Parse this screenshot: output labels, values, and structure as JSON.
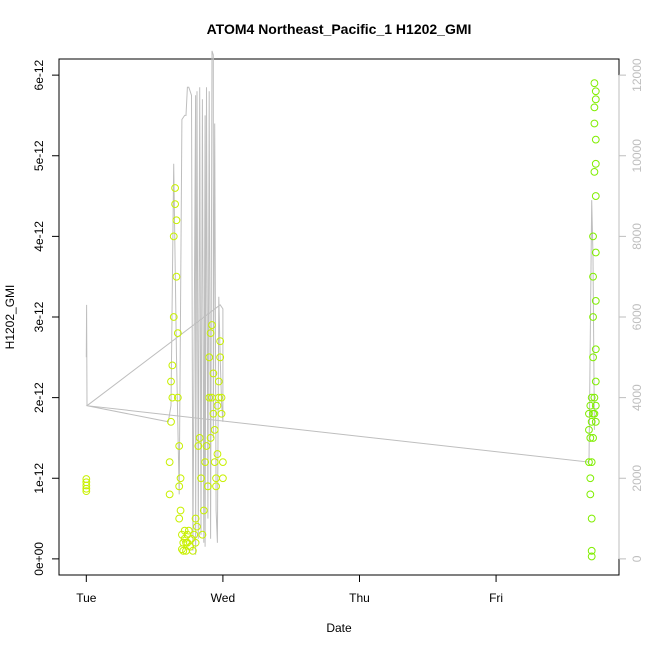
{
  "chart_data": {
    "type": "scatter",
    "title": "ATOM4 Northeast_Pacific_1 H1202_GMI",
    "xlabel": "Date",
    "ylabel": "H1202_GMI",
    "x_ticks": [
      "Tue",
      "Wed",
      "Thu",
      "Fri"
    ],
    "x_tick_values": [
      0,
      1,
      2,
      3
    ],
    "xlim": [
      -0.2,
      3.9
    ],
    "ylim_left": [
      -2e-13,
      6.2e-12
    ],
    "ylim_right": [
      -400,
      12400
    ],
    "y_ticks_left": [
      "0e+00",
      "1e-12",
      "2e-12",
      "3e-12",
      "4e-12",
      "5e-12",
      "6e-12"
    ],
    "y_tick_values_left": [
      0,
      1e-12,
      2e-12,
      3e-12,
      4e-12,
      5e-12,
      6e-12
    ],
    "y_ticks_right": [
      "0",
      "2000",
      "4000",
      "6000",
      "8000",
      "10000",
      "12000"
    ],
    "y_tick_values_right": [
      0,
      2000,
      4000,
      6000,
      8000,
      10000,
      12000
    ],
    "grid": false,
    "colors": {
      "right_series_line": "#bebebe",
      "right_axis_text": "#bebebe",
      "points_early": "#c8f000",
      "points_late": "#80ee00"
    },
    "series": [
      {
        "axis": "right",
        "style": "line",
        "x": [
          0,
          0.002,
          0.005,
          0.6,
          0.62,
          0.64,
          0.66,
          0.68,
          0.7,
          0.72,
          0.73,
          0.74,
          0.75,
          0.77,
          0.78,
          0.8,
          0.8,
          0.81,
          0.82,
          0.83,
          0.84,
          0.85,
          0.86,
          0.87,
          0.87,
          0.88,
          0.89,
          0.9,
          0.91,
          0.92,
          0.93,
          0.93,
          0.94,
          0.95,
          0.96,
          0.97,
          0.98,
          0.99,
          1.0,
          1.0,
          0.98,
          0.005,
          3.68,
          3.7,
          3.71,
          3.72
        ],
        "y": [
          5000,
          6300,
          3800,
          3400,
          3800,
          9800,
          5000,
          1600,
          10900,
          11000,
          11000,
          11700,
          11700,
          11500,
          200,
          11500,
          100,
          11600,
          500,
          11700,
          600,
          11400,
          400,
          11000,
          300,
          11700,
          1000,
          11600,
          500,
          12600,
          12500,
          3000,
          10800,
          1200,
          400,
          6500,
          5000,
          3900,
          3400,
          6200,
          6300,
          3800,
          2400,
          8900,
          7500,
          3200
        ]
      },
      {
        "axis": "left",
        "style": "points",
        "name": "",
        "x": [
          0.0,
          0.0,
          0.0,
          0.0,
          0.0,
          0.61,
          0.61,
          0.62,
          0.62,
          0.63,
          0.63,
          0.64,
          0.64,
          0.65,
          0.65,
          0.66,
          0.66,
          0.67,
          0.67,
          0.68,
          0.68,
          0.68,
          0.69,
          0.69,
          0.7,
          0.7,
          0.71,
          0.71,
          0.72,
          0.72,
          0.73,
          0.73,
          0.74,
          0.74,
          0.75,
          0.76,
          0.77,
          0.78,
          0.79,
          0.8,
          0.8,
          0.81,
          0.82,
          0.83,
          0.84,
          0.85,
          0.86,
          0.87,
          0.88,
          0.89,
          0.9,
          0.9,
          0.91,
          0.91,
          0.92,
          0.92,
          0.93,
          0.93,
          0.94,
          0.94,
          0.95,
          0.95,
          0.96,
          0.96,
          0.97,
          0.97,
          0.98,
          0.98,
          0.99,
          0.99,
          1.0,
          1.0
        ],
        "y": [
          9.9e-13,
          9.5e-13,
          9.1e-13,
          8.7e-13,
          8.4e-13,
          8e-13,
          1.2e-12,
          1.7e-12,
          2.2e-12,
          2.4e-12,
          2e-12,
          3e-12,
          4e-12,
          4.4e-12,
          4.6e-12,
          4.2e-12,
          3.5e-12,
          2.8e-12,
          2e-12,
          1.4e-12,
          9e-13,
          5e-13,
          1e-12,
          6e-13,
          3e-13,
          1.2e-13,
          2e-13,
          1e-13,
          2.5e-13,
          3.5e-13,
          2e-13,
          1e-13,
          3e-13,
          2e-13,
          3.5e-13,
          1.5e-13,
          2.5e-13,
          1e-13,
          3e-13,
          2e-13,
          5e-13,
          4e-13,
          1.4e-12,
          1.5e-12,
          1e-12,
          3e-13,
          6e-13,
          1.2e-12,
          1.4e-12,
          9e-13,
          2e-12,
          2.5e-12,
          1.5e-12,
          2.8e-12,
          2e-12,
          2.9e-12,
          1.8e-12,
          2.3e-12,
          1.2e-12,
          1.6e-12,
          9e-13,
          1e-12,
          1.3e-12,
          1.9e-12,
          2e-12,
          2.2e-12,
          2.5e-12,
          2.7e-12,
          1.8e-12,
          2e-12,
          1.2e-12,
          1e-12
        ]
      },
      {
        "axis": "left",
        "style": "points",
        "name": "",
        "x": [
          3.68,
          3.68,
          3.68,
          3.69,
          3.69,
          3.69,
          3.69,
          3.7,
          3.7,
          3.7,
          3.7,
          3.7,
          3.7,
          3.71,
          3.71,
          3.71,
          3.71,
          3.71,
          3.71,
          3.72,
          3.72,
          3.72,
          3.72,
          3.72,
          3.72,
          3.73,
          3.73,
          3.73,
          3.73,
          3.73,
          3.73,
          3.73,
          3.73,
          3.73,
          3.73,
          3.73
        ],
        "y": [
          1.2e-12,
          1.6e-12,
          1.8e-12,
          1e-12,
          1.5e-12,
          1.9e-12,
          8e-13,
          5e-13,
          1.2e-12,
          1.7e-12,
          2e-12,
          1e-13,
          3e-14,
          1.5e-12,
          1.8e-12,
          3.5e-12,
          4e-12,
          3e-12,
          2.5e-12,
          2e-12,
          1.8e-12,
          4.8e-12,
          5.4e-12,
          5.9e-12,
          5.6e-12,
          5.2e-12,
          4.5e-12,
          3.8e-12,
          3.2e-12,
          2.6e-12,
          2.2e-12,
          1.9e-12,
          1.7e-12,
          5.7e-12,
          5.8e-12,
          4.9e-12
        ]
      }
    ]
  }
}
